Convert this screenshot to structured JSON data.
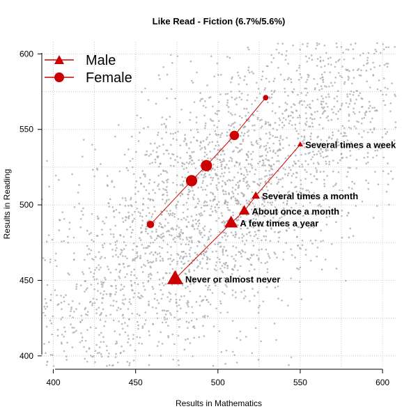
{
  "chart_data": {
    "type": "scatter",
    "title": "Like Read - Fiction (6.7%/5.6%)",
    "xlabel": "Results in Mathematics",
    "ylabel": "Results in Reading",
    "xlim": [
      393,
      608
    ],
    "ylim": [
      393,
      608
    ],
    "xticks": [
      "400",
      "450",
      "500",
      "550",
      "600"
    ],
    "yticks": [
      "400",
      "450",
      "500",
      "550",
      "600"
    ],
    "grid": true,
    "legend_position": "top-left",
    "accent_color": "#cc0000",
    "background_points_color": "#a6a6a6",
    "series": [
      {
        "name": "Male",
        "marker": "triangle",
        "points": [
          {
            "x": 474,
            "y": 451,
            "size": 5,
            "label": "Never or almost never"
          },
          {
            "x": 508,
            "y": 488,
            "size": 4,
            "label": "A few times a year"
          },
          {
            "x": 516,
            "y": 496,
            "size": 3,
            "label": "About once a month"
          },
          {
            "x": 523,
            "y": 506,
            "size": 2,
            "label": "Several times a month"
          },
          {
            "x": 550,
            "y": 540,
            "size": 1,
            "label": "Several times a week"
          }
        ]
      },
      {
        "name": "Female",
        "marker": "circle",
        "points": [
          {
            "x": 459,
            "y": 487,
            "size": 2
          },
          {
            "x": 484,
            "y": 516,
            "size": 4
          },
          {
            "x": 493,
            "y": 526,
            "size": 4
          },
          {
            "x": 510,
            "y": 546,
            "size": 3
          },
          {
            "x": 529,
            "y": 571,
            "size": 1
          }
        ]
      }
    ]
  }
}
